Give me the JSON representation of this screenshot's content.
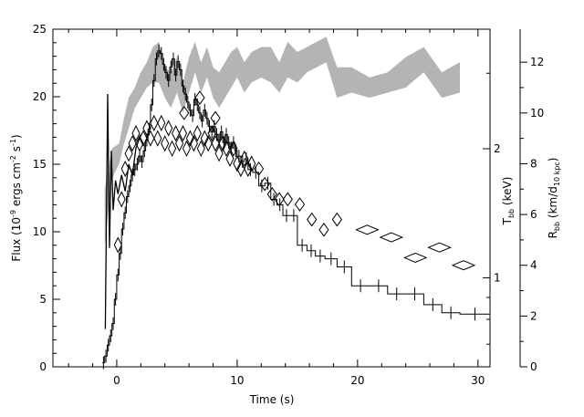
{
  "chart_data": {
    "type": "line",
    "xlabel": "Time (s)",
    "xlim": [
      -5.3,
      31
    ],
    "x_ticks": [
      0,
      10,
      20,
      30
    ],
    "y_left": {
      "label": "Flux (10^-9 ergs cm^-2 s^-1)",
      "label_parts": {
        "pre": "Flux (10",
        "sup1": "-9",
        "mid": " ergs cm",
        "sup2": "-2",
        "mid2": " s",
        "sup3": "-1",
        "post": ")"
      },
      "lim": [
        0,
        25
      ],
      "ticks": [
        0,
        5,
        10,
        15,
        20,
        25
      ]
    },
    "y_mid": {
      "label": "T_bb (keV)",
      "label_parts": {
        "main": "T",
        "sub": "bb",
        "post": " (keV)"
      },
      "scale": "log",
      "lim": [
        0.62,
        3.8
      ],
      "ticks": [
        1,
        2
      ]
    },
    "y_right": {
      "label": "R_bb (km/d_10 kpc)",
      "label_parts": {
        "main": "R",
        "sub": "bb",
        "mid": " (km/d",
        "sub2": "10 kpc",
        "post": ")"
      },
      "lim": [
        0,
        13.3
      ],
      "ticks": [
        0,
        2,
        4,
        6,
        8,
        10,
        12
      ]
    },
    "series": [
      {
        "axis": "left",
        "style": "histogram",
        "points": [
          {
            "x": -1.2,
            "y": 0.3
          },
          {
            "x": -1.0,
            "y": 0.8
          },
          {
            "x": -0.8,
            "y": 1.6
          },
          {
            "x": -0.6,
            "y": 2.3
          },
          {
            "x": -0.4,
            "y": 3.2
          },
          {
            "x": -0.2,
            "y": 5.0
          },
          {
            "x": 0.0,
            "y": 6.8
          },
          {
            "x": 0.2,
            "y": 8.4
          },
          {
            "x": 0.4,
            "y": 10.2
          },
          {
            "x": 0.6,
            "y": 11.4
          },
          {
            "x": 0.8,
            "y": 12.6
          },
          {
            "x": 1.0,
            "y": 13.4
          },
          {
            "x": 1.2,
            "y": 14.2
          },
          {
            "x": 1.4,
            "y": 14.6
          },
          {
            "x": 1.6,
            "y": 15.0
          },
          {
            "x": 1.8,
            "y": 15.6
          },
          {
            "x": 2.0,
            "y": 15.2
          },
          {
            "x": 2.2,
            "y": 16.0
          },
          {
            "x": 2.4,
            "y": 16.8
          },
          {
            "x": 2.6,
            "y": 17.6
          },
          {
            "x": 2.8,
            "y": 19.4
          },
          {
            "x": 3.0,
            "y": 21.2
          },
          {
            "x": 3.2,
            "y": 22.8
          },
          {
            "x": 3.4,
            "y": 23.4
          },
          {
            "x": 3.6,
            "y": 23.2
          },
          {
            "x": 3.8,
            "y": 22.4
          },
          {
            "x": 4.0,
            "y": 21.8
          },
          {
            "x": 4.2,
            "y": 21.2
          },
          {
            "x": 4.4,
            "y": 22.2
          },
          {
            "x": 4.6,
            "y": 22.8
          },
          {
            "x": 4.8,
            "y": 21.6
          },
          {
            "x": 5.0,
            "y": 22.6
          },
          {
            "x": 5.2,
            "y": 22.0
          },
          {
            "x": 5.4,
            "y": 20.8
          },
          {
            "x": 5.6,
            "y": 20.2
          },
          {
            "x": 5.8,
            "y": 19.6
          },
          {
            "x": 6.0,
            "y": 19.0
          },
          {
            "x": 6.2,
            "y": 18.6
          },
          {
            "x": 6.4,
            "y": 19.8
          },
          {
            "x": 6.6,
            "y": 19.4
          },
          {
            "x": 6.8,
            "y": 18.8
          },
          {
            "x": 7.0,
            "y": 18.2
          },
          {
            "x": 7.2,
            "y": 19.0
          },
          {
            "x": 7.4,
            "y": 18.4
          },
          {
            "x": 7.6,
            "y": 17.8
          },
          {
            "x": 7.8,
            "y": 17.4
          },
          {
            "x": 8.0,
            "y": 17.8
          },
          {
            "x": 8.2,
            "y": 17.2
          },
          {
            "x": 8.4,
            "y": 16.8
          },
          {
            "x": 8.6,
            "y": 17.4
          },
          {
            "x": 8.8,
            "y": 16.6
          },
          {
            "x": 9.0,
            "y": 17.2
          },
          {
            "x": 9.2,
            "y": 16.6
          },
          {
            "x": 9.4,
            "y": 16.2
          },
          {
            "x": 9.6,
            "y": 16.6
          },
          {
            "x": 9.8,
            "y": 16.0
          },
          {
            "x": 10.0,
            "y": 15.6
          },
          {
            "x": 10.3,
            "y": 15.2
          },
          {
            "x": 10.6,
            "y": 15.4
          },
          {
            "x": 10.9,
            "y": 14.6
          },
          {
            "x": 11.3,
            "y": 14.4
          },
          {
            "x": 11.8,
            "y": 13.4
          },
          {
            "x": 12.3,
            "y": 13.6
          },
          {
            "x": 12.8,
            "y": 12.4
          },
          {
            "x": 13.3,
            "y": 12.0
          },
          {
            "x": 13.8,
            "y": 11.2
          },
          {
            "x": 14.4,
            "y": 11.2
          },
          {
            "x": 15.0,
            "y": 9.0
          },
          {
            "x": 15.8,
            "y": 8.6
          },
          {
            "x": 16.5,
            "y": 8.2
          },
          {
            "x": 17.3,
            "y": 8.0
          },
          {
            "x": 18.3,
            "y": 7.4
          },
          {
            "x": 19.5,
            "y": 6.0
          },
          {
            "x": 21.0,
            "y": 6.0
          },
          {
            "x": 22.5,
            "y": 5.4
          },
          {
            "x": 24.0,
            "y": 5.4
          },
          {
            "x": 25.5,
            "y": 4.6
          },
          {
            "x": 27.0,
            "y": 4.0
          },
          {
            "x": 28.5,
            "y": 3.9
          },
          {
            "x": 31.0,
            "y": 3.9
          }
        ]
      },
      {
        "axis": "left",
        "style": "spike-line",
        "points": [
          {
            "x": -0.95,
            "y": 2.8
          },
          {
            "x": -0.75,
            "y": 20.2
          },
          {
            "x": -0.6,
            "y": 8.8
          },
          {
            "x": -0.45,
            "y": 16.0
          },
          {
            "x": -0.3,
            "y": 11.6
          },
          {
            "x": -0.1,
            "y": 13.8
          },
          {
            "x": 0.1,
            "y": 12.8
          },
          {
            "x": 0.4,
            "y": 14.2
          },
          {
            "x": 0.7,
            "y": 13.0
          },
          {
            "x": 1.0,
            "y": 15.0
          },
          {
            "x": 1.3,
            "y": 14.2
          },
          {
            "x": 1.6,
            "y": 16.2
          },
          {
            "x": 2.0,
            "y": 17.2
          }
        ]
      },
      {
        "axis": "right",
        "style": "band",
        "points": [
          {
            "x": -1.0,
            "lo": 4.8,
            "hi": 7.0
          },
          {
            "x": -0.4,
            "lo": 7.4,
            "hi": 8.6
          },
          {
            "x": 0.2,
            "lo": 8.0,
            "hi": 8.8
          },
          {
            "x": 0.6,
            "lo": 8.8,
            "hi": 9.8
          },
          {
            "x": 1.0,
            "lo": 9.4,
            "hi": 10.6
          },
          {
            "x": 1.5,
            "lo": 10.2,
            "hi": 11.0
          },
          {
            "x": 2.0,
            "lo": 10.6,
            "hi": 11.6
          },
          {
            "x": 2.5,
            "lo": 11.0,
            "hi": 12.0
          },
          {
            "x": 3.0,
            "lo": 11.2,
            "hi": 12.6
          },
          {
            "x": 3.5,
            "lo": 11.2,
            "hi": 12.8
          },
          {
            "x": 4.0,
            "lo": 10.6,
            "hi": 11.8
          },
          {
            "x": 4.5,
            "lo": 10.2,
            "hi": 11.6
          },
          {
            "x": 5.0,
            "lo": 10.8,
            "hi": 12.2
          },
          {
            "x": 5.5,
            "lo": 10.0,
            "hi": 11.2
          },
          {
            "x": 6.0,
            "lo": 10.8,
            "hi": 12.2
          },
          {
            "x": 6.5,
            "lo": 11.6,
            "hi": 12.8
          },
          {
            "x": 7.0,
            "lo": 10.8,
            "hi": 12.0
          },
          {
            "x": 7.5,
            "lo": 11.4,
            "hi": 12.6
          },
          {
            "x": 8.0,
            "lo": 10.6,
            "hi": 11.8
          },
          {
            "x": 8.5,
            "lo": 10.2,
            "hi": 11.6
          },
          {
            "x": 9.0,
            "lo": 10.6,
            "hi": 12.0
          },
          {
            "x": 9.5,
            "lo": 11.0,
            "hi": 12.4
          },
          {
            "x": 10.0,
            "lo": 11.4,
            "hi": 12.6
          },
          {
            "x": 10.6,
            "lo": 10.8,
            "hi": 12.0
          },
          {
            "x": 11.2,
            "lo": 11.2,
            "hi": 12.4
          },
          {
            "x": 12.0,
            "lo": 11.4,
            "hi": 12.6
          },
          {
            "x": 12.8,
            "lo": 11.2,
            "hi": 12.6
          },
          {
            "x": 13.5,
            "lo": 10.8,
            "hi": 12.0
          },
          {
            "x": 14.2,
            "lo": 11.4,
            "hi": 12.8
          },
          {
            "x": 15.0,
            "lo": 11.2,
            "hi": 12.4
          },
          {
            "x": 15.8,
            "lo": 11.6,
            "hi": 12.6
          },
          {
            "x": 16.6,
            "lo": 11.8,
            "hi": 12.8
          },
          {
            "x": 17.4,
            "lo": 12.0,
            "hi": 13.0
          },
          {
            "x": 18.3,
            "lo": 10.6,
            "hi": 11.8
          },
          {
            "x": 19.5,
            "lo": 10.8,
            "hi": 11.8
          },
          {
            "x": 21.0,
            "lo": 10.6,
            "hi": 11.4
          },
          {
            "x": 22.5,
            "lo": 10.8,
            "hi": 11.6
          },
          {
            "x": 24.0,
            "lo": 11.0,
            "hi": 12.2
          },
          {
            "x": 25.5,
            "lo": 11.6,
            "hi": 12.6
          },
          {
            "x": 27.0,
            "lo": 10.6,
            "hi": 11.6
          },
          {
            "x": 28.5,
            "lo": 10.8,
            "hi": 12.0
          }
        ]
      },
      {
        "axis": "right",
        "style": "diamond-chain",
        "points": [
          {
            "x": 0.1,
            "y": 4.8
          },
          {
            "x": 0.4,
            "y": 6.6
          },
          {
            "x": 0.7,
            "y": 7.8
          },
          {
            "x": 1.0,
            "y": 8.4
          },
          {
            "x": 1.3,
            "y": 8.8
          },
          {
            "x": 1.6,
            "y": 9.2
          },
          {
            "x": 1.9,
            "y": 8.8
          },
          {
            "x": 2.2,
            "y": 9.0
          },
          {
            "x": 2.5,
            "y": 9.4
          },
          {
            "x": 2.8,
            "y": 9.0
          },
          {
            "x": 3.1,
            "y": 9.6
          },
          {
            "x": 3.4,
            "y": 9.0
          },
          {
            "x": 3.7,
            "y": 9.6
          },
          {
            "x": 4.0,
            "y": 8.8
          },
          {
            "x": 4.3,
            "y": 9.4
          },
          {
            "x": 4.6,
            "y": 8.6
          },
          {
            "x": 4.9,
            "y": 9.2
          },
          {
            "x": 5.2,
            "y": 8.8
          },
          {
            "x": 5.5,
            "y": 9.2
          },
          {
            "x": 5.8,
            "y": 8.6
          },
          {
            "x": 6.1,
            "y": 9.0
          },
          {
            "x": 6.4,
            "y": 8.8
          },
          {
            "x": 6.7,
            "y": 9.2
          },
          {
            "x": 7.0,
            "y": 8.6
          },
          {
            "x": 7.3,
            "y": 9.0
          },
          {
            "x": 7.6,
            "y": 8.8
          },
          {
            "x": 7.9,
            "y": 9.2
          },
          {
            "x": 8.2,
            "y": 8.8
          },
          {
            "x": 8.5,
            "y": 8.4
          },
          {
            "x": 8.8,
            "y": 8.8
          },
          {
            "x": 9.1,
            "y": 8.6
          },
          {
            "x": 9.4,
            "y": 8.2
          },
          {
            "x": 9.7,
            "y": 8.6
          },
          {
            "x": 10.0,
            "y": 8.0
          },
          {
            "x": 10.3,
            "y": 7.8
          },
          {
            "x": 10.6,
            "y": 8.2
          },
          {
            "x": 10.9,
            "y": 7.8
          },
          {
            "x": 11.2,
            "y": 8.0
          }
        ]
      },
      {
        "axis": "right",
        "style": "diamonds",
        "points": [
          {
            "x": 11.8,
            "y": 7.8
          },
          {
            "x": 12.3,
            "y": 7.2
          },
          {
            "x": 12.9,
            "y": 6.8
          },
          {
            "x": 13.5,
            "y": 6.6
          },
          {
            "x": 14.2,
            "y": 6.6
          },
          {
            "x": 15.2,
            "y": 6.4
          },
          {
            "x": 16.2,
            "y": 5.8
          },
          {
            "x": 17.2,
            "y": 5.4
          },
          {
            "x": 18.3,
            "y": 5.8
          },
          {
            "x": 20.8,
            "y": 5.4
          },
          {
            "x": 22.8,
            "y": 5.1
          },
          {
            "x": 24.8,
            "y": 4.3
          },
          {
            "x": 26.8,
            "y": 4.7
          },
          {
            "x": 28.8,
            "y": 4.0
          }
        ]
      },
      {
        "axis": "right",
        "style": "diamonds-extra",
        "points": [
          {
            "x": 5.6,
            "y": 10.0
          },
          {
            "x": 6.9,
            "y": 10.6
          },
          {
            "x": 8.2,
            "y": 9.8
          }
        ]
      }
    ]
  }
}
